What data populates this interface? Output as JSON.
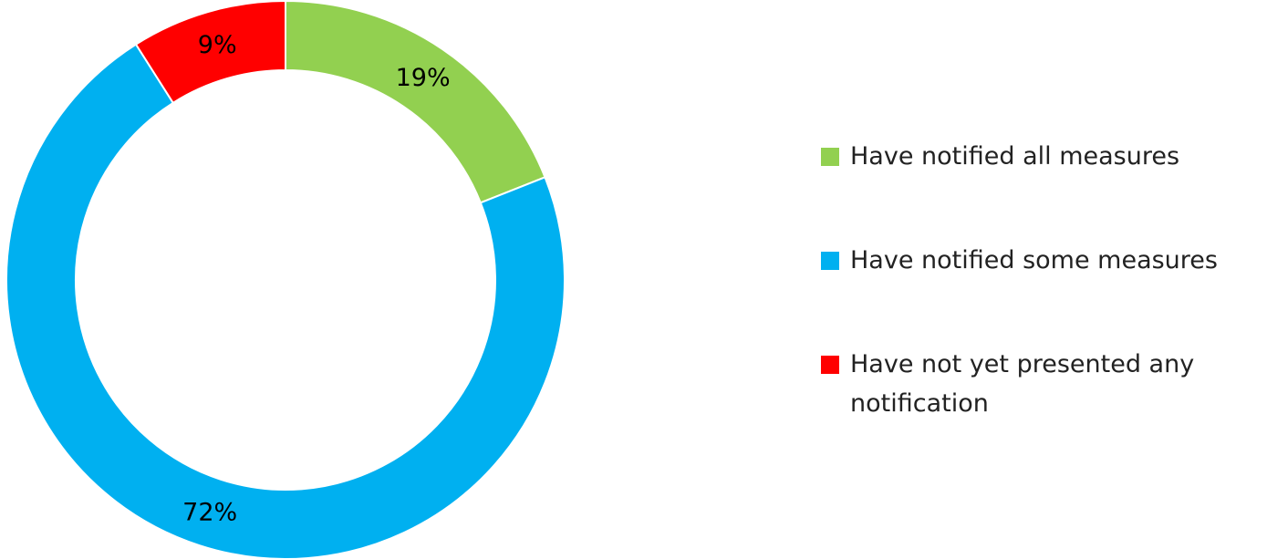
{
  "chart_data": {
    "type": "pie",
    "variant": "doughnut",
    "title": "",
    "slices": [
      {
        "label": "Have notified all measures",
        "value": 19,
        "display": "19%",
        "color": "#92D050"
      },
      {
        "label": "Have notified some measures",
        "value": 72,
        "display": "72%",
        "color": "#00B0F0"
      },
      {
        "label": "Have not yet presented any notification",
        "value": 9,
        "display": "9%",
        "color": "#FF0000"
      }
    ],
    "legend_position": "right"
  }
}
